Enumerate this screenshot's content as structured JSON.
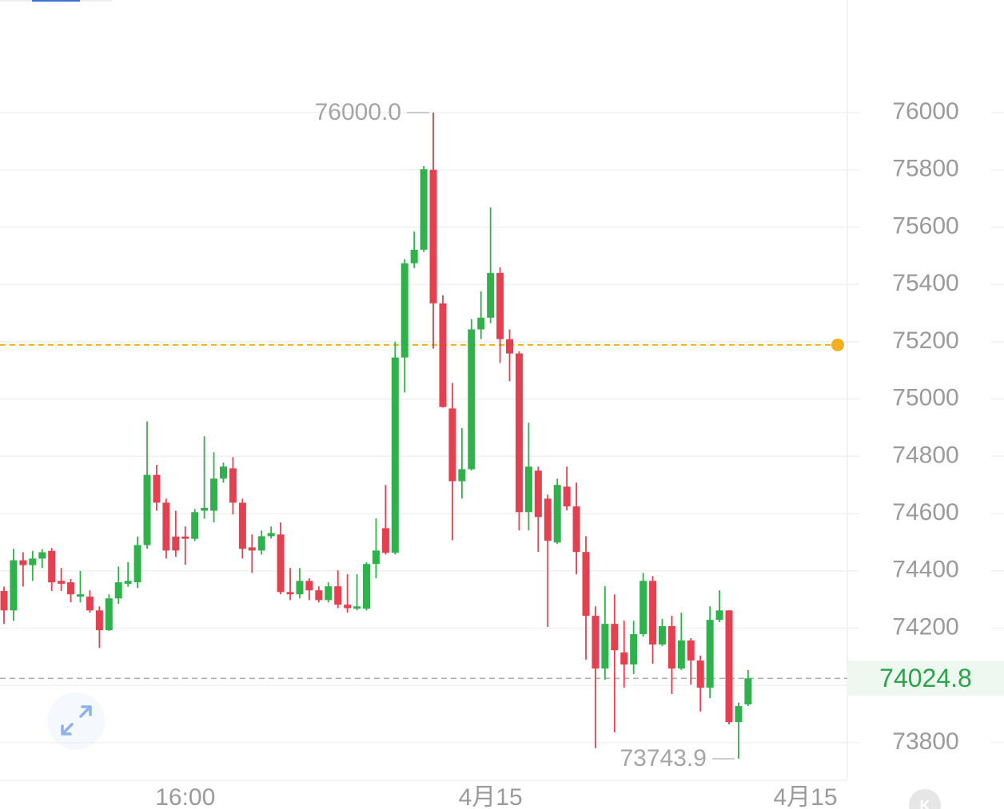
{
  "chart_data": {
    "type": "candlestick",
    "up_color": "#2fb24c",
    "down_color": "#e4404f",
    "xlim": [
      -0.42,
      88.4
    ],
    "ylim": [
      73669,
      76393
    ],
    "yticks": [
      73800,
      74000,
      74200,
      74400,
      74600,
      74800,
      75000,
      75200,
      75400,
      75600,
      75800,
      76000
    ],
    "ytick_hidden": [
      74000
    ],
    "xticks": [
      {
        "value": 19,
        "label": "16:00"
      },
      {
        "value": 51,
        "label": "4月15"
      },
      {
        "value": 84,
        "label": "4月15"
      }
    ],
    "grid": true,
    "open": [
      74330,
      74262,
      74437,
      74420,
      74443,
      74470,
      74365,
      74360,
      74310,
      74310,
      74262,
      74193,
      74304,
      74355,
      74360,
      74490,
      74735,
      74638,
      74520,
      74520,
      74512,
      74610,
      74610,
      74722,
      74758,
      74638,
      74482,
      74471,
      74521,
      74527,
      74326,
      74318,
      74365,
      74332,
      74298,
      74346,
      74282,
      74268,
      74268,
      74424,
      74549,
      74463,
      75145,
      75474,
      75521,
      75800,
      75334,
      74967,
      74713,
      74755,
      75243,
      75284,
      75440,
      75209,
      75159,
      74605,
      74750,
      74652,
      74499,
      74694,
      74625,
      74466,
      74243,
      74059,
      74215,
      74115,
      74073,
      74179,
      74365,
      74143,
      74207,
      74059,
      74157,
      74087,
      73992,
      74229,
      74262,
      73872,
      73934
    ],
    "high": [
      74345,
      74477,
      74465,
      74470,
      74476,
      74480,
      74410,
      74372,
      74400,
      74332,
      74276,
      74318,
      74415,
      74430,
      74520,
      74922,
      74770,
      74652,
      74610,
      74555,
      74616,
      74870,
      74814,
      74778,
      74797,
      74652,
      74527,
      74541,
      74555,
      74569,
      74410,
      74410,
      74374,
      74346,
      74360,
      74402,
      74388,
      74388,
      74430,
      74583,
      74700,
      75200,
      75488,
      75585,
      75813,
      76000,
      75362,
      75056,
      74898,
      75279,
      75376,
      75669,
      75460,
      75243,
      75167,
      74917,
      74764,
      74666,
      74722,
      74764,
      74708,
      74521,
      74276,
      74346,
      74318,
      74226,
      74226,
      74393,
      74382,
      74232,
      74243,
      74254,
      74165,
      74104,
      74276,
      74332,
      74262,
      73940,
      74054
    ],
    "low": [
      74215,
      74225,
      74345,
      74365,
      74410,
      74330,
      74330,
      74290,
      74290,
      74254,
      74131,
      74190,
      74285,
      74345,
      74340,
      74477,
      74610,
      74443,
      74449,
      74421,
      74504,
      74582,
      74569,
      74708,
      74597,
      74443,
      74393,
      74457,
      74513,
      74318,
      74298,
      74304,
      74298,
      74290,
      74290,
      74270,
      74254,
      74262,
      74262,
      74374,
      74457,
      74457,
      75023,
      75457,
      75513,
      75176,
      74970,
      74507,
      74652,
      74750,
      75209,
      75265,
      75126,
      75062,
      74541,
      74541,
      74466,
      74204,
      74494,
      74611,
      74388,
      74090,
      73781,
      74020,
      73836,
      73992,
      74040,
      74170,
      74076,
      74137,
      73970,
      74054,
      74003,
      73909,
      73956,
      74221,
      73864,
      73743.9,
      73928
    ],
    "close": [
      74262,
      74437,
      74420,
      74443,
      74465,
      74360,
      74355,
      74318,
      74318,
      74262,
      74193,
      74304,
      74360,
      74365,
      74490,
      74735,
      74638,
      74471,
      74471,
      74512,
      74605,
      74620,
      74722,
      74764,
      74638,
      74477,
      74471,
      74521,
      74532,
      74326,
      74318,
      74365,
      74332,
      74298,
      74346,
      74282,
      74270,
      74276,
      74424,
      74471,
      74463,
      75145,
      75474,
      75521,
      75802,
      75334,
      74972,
      74713,
      74755,
      75243,
      75284,
      75440,
      75209,
      75159,
      74605,
      74764,
      74588,
      74505,
      74700,
      74625,
      74466,
      74243,
      74059,
      74215,
      74123,
      74073,
      74179,
      74365,
      74143,
      74207,
      74059,
      74157,
      74087,
      73992,
      74229,
      74262,
      73872,
      73928,
      74024.8
    ],
    "high_label": {
      "value": 76000,
      "label": "76000.0"
    },
    "low_label": {
      "value": 73743.9,
      "label": "73743.9"
    },
    "last_price": 74024.8,
    "last_price_color": "#2aa54a",
    "order_line": 75189,
    "order_color": "#f2b01e",
    "badge": "K"
  }
}
